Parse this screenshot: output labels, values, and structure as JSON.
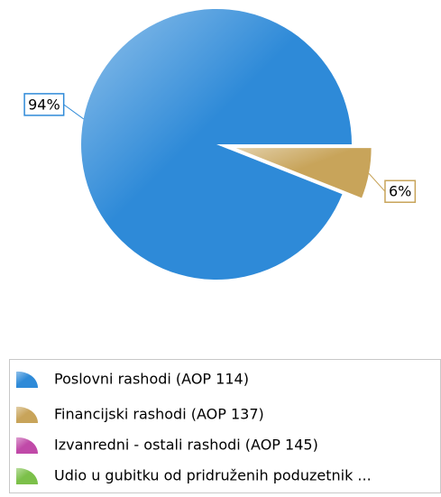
{
  "chart_data": {
    "type": "pie",
    "categories": [
      "Poslovni rashodi (AOP 114)",
      "Financijski rashodi (AOP 137)",
      "Izvanredni - ostali rashodi (AOP 145)",
      "Udio u gubitku od pridruženih poduzetnik ..."
    ],
    "values": [
      94,
      6,
      0,
      0
    ],
    "value_labels": [
      "94%",
      "6%",
      null,
      null
    ],
    "colors": [
      "#2e8ad8",
      "#c8a45a",
      "#c04aa8",
      "#7cc04a"
    ],
    "exploded": [
      false,
      true,
      false,
      false
    ],
    "legend": "bottom"
  }
}
